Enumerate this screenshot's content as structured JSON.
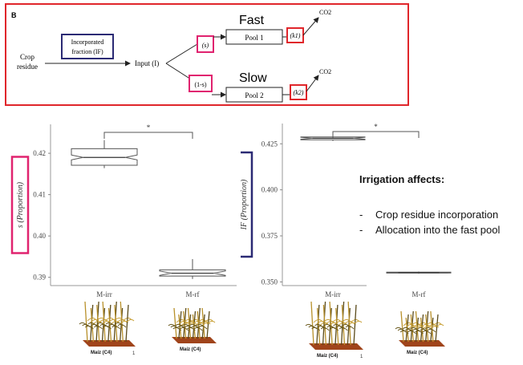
{
  "colors": {
    "red": "#e0262b",
    "pink": "#e0236f",
    "navy": "#2b2a74",
    "gray": "#555555"
  },
  "diagram": {
    "panel_label": "B",
    "crop_residue": [
      "Crop",
      "residue"
    ],
    "incorporated_fraction": [
      "Incorporated",
      "fraction (IF)"
    ],
    "input": "Input (I)",
    "s": "(s)",
    "one_minus_s": "(1-s)",
    "fast": "Fast",
    "slow": "Slow",
    "pool1": "Pool 1",
    "pool2": "Pool 2",
    "k1": "(k1)",
    "k2": "(k2)",
    "co2_top": "CO2",
    "co2_bottom": "CO2"
  },
  "chart_data": [
    {
      "type": "boxplot",
      "ylabel": "s (Proportion)",
      "categories": [
        "M-irr",
        "M-rf"
      ],
      "ylim": [
        0.388,
        0.427
      ],
      "yticks": [
        "0.42",
        "0.41",
        "0.40",
        "0.39"
      ],
      "ytick_values": [
        0.42,
        0.41,
        0.4,
        0.39
      ],
      "boxes": [
        {
          "whisker_low": 0.4164,
          "q1": 0.4171,
          "median": 0.419,
          "q3": 0.4211,
          "whisker_high": 0.4232
        },
        {
          "whisker_low": 0.3896,
          "q1": 0.3903,
          "median": 0.391,
          "q3": 0.3918,
          "whisker_high": 0.3944
        }
      ],
      "significance": "*"
    },
    {
      "type": "boxplot",
      "ylabel": "IF (Proportion)",
      "categories": [
        "M-irr",
        "M-rf"
      ],
      "ylim": [
        0.348,
        0.436
      ],
      "yticks": [
        "0.425",
        "0.400",
        "0.375",
        "0.350"
      ],
      "ytick_values": [
        0.425,
        0.4,
        0.375,
        0.35
      ],
      "boxes": [
        {
          "whisker_low": 0.4265,
          "q1": 0.4272,
          "median": 0.428,
          "q3": 0.4287,
          "whisker_high": 0.4295
        },
        {
          "whisker_low": 0.3545,
          "q1": 0.3548,
          "median": 0.355,
          "q3": 0.3553,
          "whisker_high": 0.3556
        }
      ],
      "significance": "*"
    }
  ],
  "notes": {
    "title": "Irrigation affects:",
    "items": [
      "Crop residue incorporation",
      "Allocation into the fast pool"
    ]
  },
  "plants": [
    {
      "label": "Maíz (C4)",
      "tick": "1"
    },
    {
      "label": "Maíz (C4)",
      "tick": ""
    },
    {
      "label": "Maíz (C4)",
      "tick": "1"
    },
    {
      "label": "Maíz (C4)",
      "tick": ""
    }
  ]
}
